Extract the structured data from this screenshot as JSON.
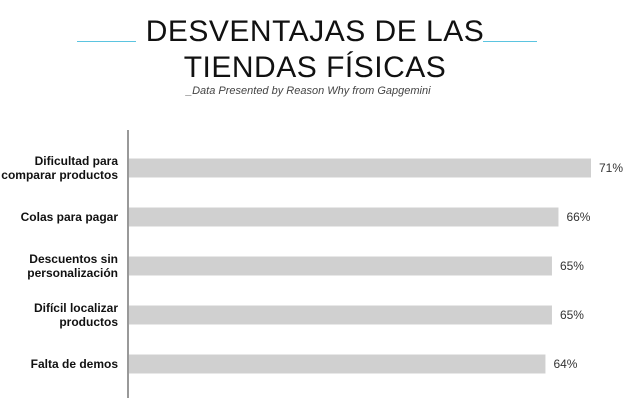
{
  "header": {
    "title_line1": "DESVENTAJAS DE LAS",
    "title_line2": "TIENDAS FÍSICAS",
    "subtitle": "_Data Presented by Reason Why from Gapgemini"
  },
  "colors": {
    "accent_line": "#5bc4e0",
    "bar": "#d0d0d0",
    "highlight_value": "#e84a9a",
    "axis": "#333333"
  },
  "chart_data": {
    "type": "bar",
    "orientation": "horizontal",
    "categories": [
      [
        "Dificultad para",
        "comparar productos"
      ],
      [
        "Colas para pagar"
      ],
      [
        "Descuentos sin",
        "personalización"
      ],
      [
        "Difícil localizar",
        "productos"
      ],
      [
        "Falta de demos"
      ]
    ],
    "values": [
      71,
      66,
      65,
      65,
      64
    ],
    "value_labels": [
      "71%",
      "66%",
      "65%",
      "65%",
      "64%"
    ],
    "highlight_index": 0,
    "xlim": [
      0,
      71
    ],
    "grid": false
  }
}
